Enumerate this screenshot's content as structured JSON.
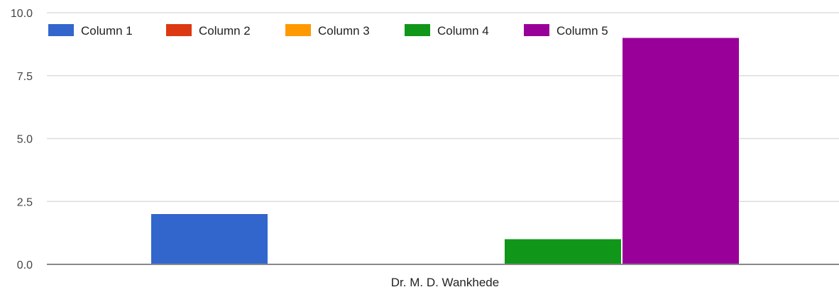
{
  "chart_data": {
    "type": "bar",
    "categories": [
      "Dr. M. D. Wankhede"
    ],
    "series": [
      {
        "name": "Column 1",
        "color": "#3366cc",
        "values": [
          2
        ]
      },
      {
        "name": "Column 2",
        "color": "#dc3912",
        "values": [
          0
        ]
      },
      {
        "name": "Column 3",
        "color": "#ff9900",
        "values": [
          0
        ]
      },
      {
        "name": "Column 4",
        "color": "#109618",
        "values": [
          1
        ]
      },
      {
        "name": "Column 5",
        "color": "#990099",
        "values": [
          9
        ]
      }
    ],
    "title": "",
    "xlabel": "",
    "ylabel": "",
    "ylim": [
      0,
      10
    ],
    "yticks": [
      "0.0",
      "2.5",
      "5.0",
      "7.5",
      "10.0"
    ],
    "grid": true,
    "legend_position": "top-left"
  }
}
